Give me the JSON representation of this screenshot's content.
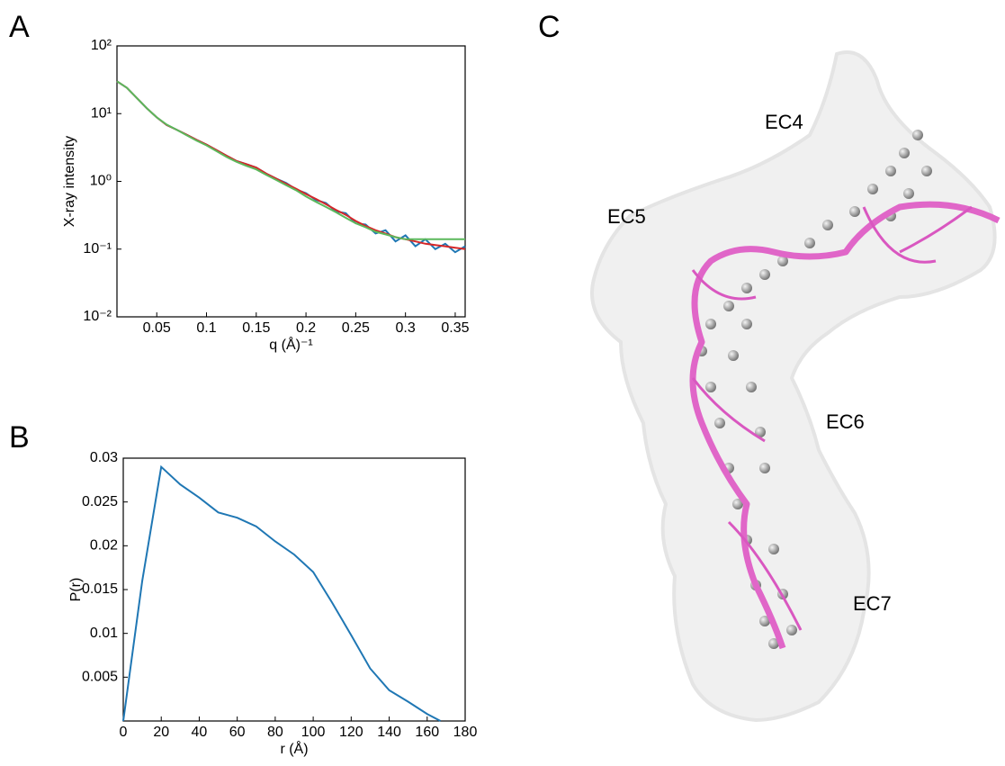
{
  "panel_labels": [
    "A",
    "B",
    "C"
  ],
  "chart_data": [
    {
      "type": "line",
      "xlabel": "q (Å)⁻¹",
      "ylabel": "X-ray intensity",
      "log_y": true,
      "xlim": [
        0.01,
        0.36
      ],
      "xticks": [
        0.05,
        0.1,
        0.15,
        0.2,
        0.25,
        0.3,
        0.35
      ],
      "ylim": [
        0.01,
        100
      ],
      "yticks": [
        {
          "value": 0.01,
          "label": "10⁻²"
        },
        {
          "value": 0.1,
          "label": "10⁻¹"
        },
        {
          "value": 1,
          "label": "10⁰"
        },
        {
          "value": 10,
          "label": "10¹"
        },
        {
          "value": 100,
          "label": "10²"
        }
      ],
      "x": [
        0.01,
        0.02,
        0.03,
        0.04,
        0.05,
        0.06,
        0.07,
        0.08,
        0.09,
        0.1,
        0.11,
        0.12,
        0.13,
        0.14,
        0.15,
        0.16,
        0.17,
        0.18,
        0.19,
        0.2,
        0.21,
        0.22,
        0.23,
        0.24,
        0.25,
        0.26,
        0.27,
        0.28,
        0.29,
        0.3,
        0.31,
        0.32,
        0.33,
        0.34,
        0.35,
        0.36
      ],
      "series": [
        {
          "color": "#1f77b4",
          "values": [
            30,
            24,
            17,
            12,
            8.8,
            6.8,
            5.8,
            4.9,
            4.1,
            3.5,
            2.9,
            2.4,
            2.0,
            1.8,
            1.6,
            1.3,
            1.1,
            0.95,
            0.76,
            0.67,
            0.53,
            0.48,
            0.36,
            0.34,
            0.24,
            0.23,
            0.17,
            0.19,
            0.13,
            0.16,
            0.11,
            0.14,
            0.1,
            0.12,
            0.09,
            0.11
          ]
        },
        {
          "color": "#d62728",
          "values": [
            30,
            24,
            17,
            12,
            8.8,
            6.8,
            5.8,
            4.9,
            4.1,
            3.5,
            2.9,
            2.4,
            2.0,
            1.8,
            1.6,
            1.3,
            1.1,
            0.92,
            0.78,
            0.65,
            0.55,
            0.46,
            0.38,
            0.32,
            0.26,
            0.22,
            0.19,
            0.17,
            0.15,
            0.14,
            0.13,
            0.12,
            0.115,
            0.11,
            0.105,
            0.1
          ]
        },
        {
          "color": "#5cb85c",
          "values": [
            30,
            24,
            17,
            12,
            8.8,
            6.9,
            5.8,
            4.8,
            4.0,
            3.4,
            2.8,
            2.3,
            1.95,
            1.7,
            1.5,
            1.25,
            1.05,
            0.88,
            0.74,
            0.6,
            0.5,
            0.42,
            0.35,
            0.29,
            0.24,
            0.21,
            0.18,
            0.165,
            0.15,
            0.14,
            0.14,
            0.14,
            0.14,
            0.14,
            0.14,
            0.14
          ]
        }
      ]
    },
    {
      "type": "line",
      "xlabel": "r (Å)",
      "ylabel": "P(r)",
      "xlim": [
        0,
        180
      ],
      "xticks": [
        0,
        20,
        40,
        60,
        80,
        100,
        120,
        140,
        160,
        180
      ],
      "ylim": [
        0,
        0.03
      ],
      "yticks": [
        0.005,
        0.01,
        0.015,
        0.02,
        0.025,
        0.03
      ],
      "x": [
        0,
        10,
        20,
        30,
        40,
        50,
        60,
        70,
        80,
        90,
        100,
        110,
        120,
        130,
        140,
        150,
        160,
        167
      ],
      "series": [
        {
          "color": "#1f77b4",
          "values": [
            0,
            0.016,
            0.029,
            0.027,
            0.0255,
            0.0238,
            0.0232,
            0.0222,
            0.0205,
            0.019,
            0.017,
            0.0135,
            0.0098,
            0.006,
            0.0035,
            0.0022,
            0.0008,
            0
          ]
        }
      ]
    }
  ],
  "structure": {
    "labels": [
      "EC4",
      "EC5",
      "EC6",
      "EC7"
    ]
  }
}
